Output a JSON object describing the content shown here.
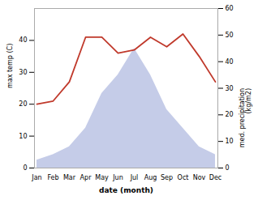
{
  "chart_data": {
    "type": "line",
    "categories": [
      "Jan",
      "Feb",
      "Mar",
      "Apr",
      "May",
      "Jun",
      "Jul",
      "Aug",
      "Sep",
      "Oct",
      "Nov",
      "Dec"
    ],
    "series": [
      {
        "type": "area",
        "axis": "y2",
        "color": "#c5cce8",
        "values": [
          3,
          5,
          8,
          15,
          28,
          35,
          45,
          35,
          22,
          15,
          8,
          5
        ]
      },
      {
        "type": "line",
        "axis": "y",
        "color": "#c0392b",
        "values": [
          20,
          21,
          27,
          41,
          41,
          36,
          37,
          41,
          38,
          42,
          35,
          27
        ]
      }
    ],
    "xlabel": "date (month)",
    "ylabel": "max temp (C)",
    "y2label": "med. precipitation\n(kg/m2)",
    "ylim": [
      0,
      50
    ],
    "yticks": [
      0,
      10,
      20,
      30,
      40
    ],
    "y2lim": [
      0,
      60
    ],
    "y2ticks": [
      0,
      10,
      20,
      30,
      40,
      50,
      60
    ],
    "grid": false
  }
}
